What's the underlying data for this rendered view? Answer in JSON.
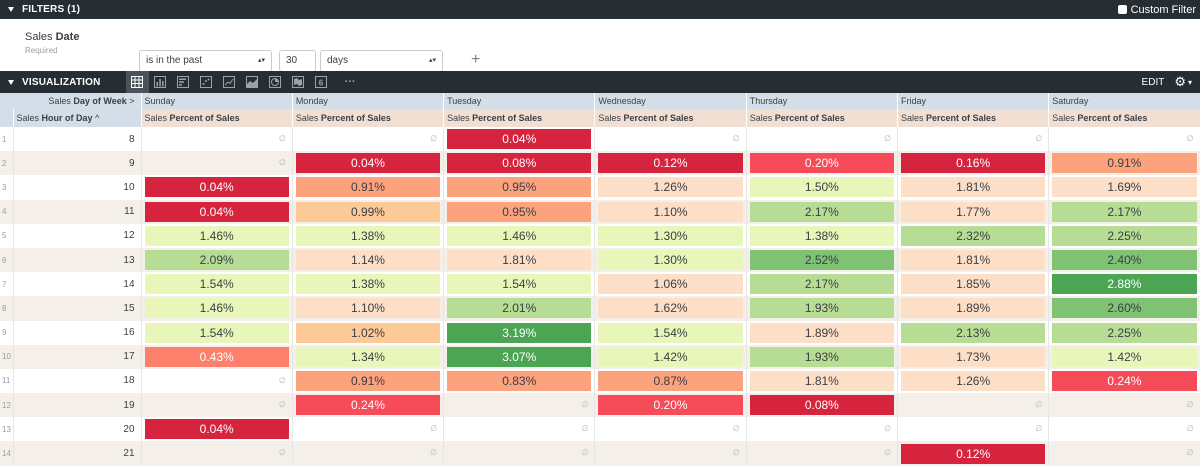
{
  "filters": {
    "title": "FILTERS (1)",
    "custom_filter_label": "Custom Filter",
    "field_view": "Sales",
    "field_name": "Date",
    "required_label": "Required",
    "operator": "is in the past",
    "amount": "30",
    "unit": "days",
    "add_symbol": "+"
  },
  "visualization": {
    "title": "VISUALIZATION",
    "edit_label": "EDIT",
    "more_label": "···",
    "icons": [
      "table-icon",
      "bar-chart-icon",
      "column-chart-icon",
      "scatter-icon",
      "line-chart-icon",
      "area-chart-icon",
      "pie-chart-icon",
      "map-icon",
      "single-value-icon"
    ],
    "single_value_glyph": "6"
  },
  "table": {
    "pivot_view": "Sales",
    "pivot_field": "Day of Week",
    "pivot_arrow": ">",
    "dim_view": "Sales",
    "dim_field": "Hour of Day",
    "dim_sort": "^",
    "measure_view": "Sales",
    "measure_field": "Percent of Sales",
    "null_symbol": "∅",
    "days": [
      "Sunday",
      "Monday",
      "Tuesday",
      "Wednesday",
      "Thursday",
      "Friday",
      "Saturday"
    ],
    "colors": {
      "deep_red": "#d6243f",
      "red": "#f64b58",
      "salmon": "#fc806b",
      "orange": "#fca27d",
      "peach": "#fdc996",
      "light_peach": "#fddfc8",
      "pale_yellow": "#e8f7b9",
      "light_green": "#b7dc94",
      "green": "#7fc274",
      "strong_green": "#4ba552",
      "text_dark": "#3a3f44",
      "text_light": "#ffffff"
    },
    "rows": [
      {
        "idx": "1",
        "hour": "8",
        "cells": [
          null,
          null,
          {
            "v": "0.04%",
            "c": "deep_red",
            "t": "light"
          },
          null,
          null,
          null,
          null
        ]
      },
      {
        "idx": "2",
        "hour": "9",
        "cells": [
          null,
          {
            "v": "0.04%",
            "c": "deep_red",
            "t": "light"
          },
          {
            "v": "0.08%",
            "c": "deep_red",
            "t": "light"
          },
          {
            "v": "0.12%",
            "c": "deep_red",
            "t": "light"
          },
          {
            "v": "0.20%",
            "c": "red",
            "t": "light"
          },
          {
            "v": "0.16%",
            "c": "deep_red",
            "t": "light"
          },
          {
            "v": "0.91%",
            "c": "orange",
            "t": "dark"
          }
        ]
      },
      {
        "idx": "3",
        "hour": "10",
        "cells": [
          {
            "v": "0.04%",
            "c": "deep_red",
            "t": "light"
          },
          {
            "v": "0.91%",
            "c": "orange",
            "t": "dark"
          },
          {
            "v": "0.95%",
            "c": "orange",
            "t": "dark"
          },
          {
            "v": "1.26%",
            "c": "light_peach",
            "t": "dark"
          },
          {
            "v": "1.50%",
            "c": "pale_yellow",
            "t": "dark"
          },
          {
            "v": "1.81%",
            "c": "light_peach",
            "t": "dark"
          },
          {
            "v": "1.69%",
            "c": "light_peach",
            "t": "dark"
          }
        ]
      },
      {
        "idx": "4",
        "hour": "11",
        "cells": [
          {
            "v": "0.04%",
            "c": "deep_red",
            "t": "light"
          },
          {
            "v": "0.99%",
            "c": "peach",
            "t": "dark"
          },
          {
            "v": "0.95%",
            "c": "orange",
            "t": "dark"
          },
          {
            "v": "1.10%",
            "c": "light_peach",
            "t": "dark"
          },
          {
            "v": "2.17%",
            "c": "light_green",
            "t": "dark"
          },
          {
            "v": "1.77%",
            "c": "light_peach",
            "t": "dark"
          },
          {
            "v": "2.17%",
            "c": "light_green",
            "t": "dark"
          }
        ]
      },
      {
        "idx": "5",
        "hour": "12",
        "cells": [
          {
            "v": "1.46%",
            "c": "pale_yellow",
            "t": "dark"
          },
          {
            "v": "1.38%",
            "c": "pale_yellow",
            "t": "dark"
          },
          {
            "v": "1.46%",
            "c": "pale_yellow",
            "t": "dark"
          },
          {
            "v": "1.30%",
            "c": "pale_yellow",
            "t": "dark"
          },
          {
            "v": "1.38%",
            "c": "pale_yellow",
            "t": "dark"
          },
          {
            "v": "2.32%",
            "c": "light_green",
            "t": "dark"
          },
          {
            "v": "2.25%",
            "c": "light_green",
            "t": "dark"
          }
        ]
      },
      {
        "idx": "6",
        "hour": "13",
        "cells": [
          {
            "v": "2.09%",
            "c": "light_green",
            "t": "dark"
          },
          {
            "v": "1.14%",
            "c": "light_peach",
            "t": "dark"
          },
          {
            "v": "1.81%",
            "c": "light_peach",
            "t": "dark"
          },
          {
            "v": "1.30%",
            "c": "pale_yellow",
            "t": "dark"
          },
          {
            "v": "2.52%",
            "c": "green",
            "t": "dark"
          },
          {
            "v": "1.81%",
            "c": "light_peach",
            "t": "dark"
          },
          {
            "v": "2.40%",
            "c": "green",
            "t": "dark"
          }
        ]
      },
      {
        "idx": "7",
        "hour": "14",
        "cells": [
          {
            "v": "1.54%",
            "c": "pale_yellow",
            "t": "dark"
          },
          {
            "v": "1.38%",
            "c": "pale_yellow",
            "t": "dark"
          },
          {
            "v": "1.54%",
            "c": "pale_yellow",
            "t": "dark"
          },
          {
            "v": "1.06%",
            "c": "light_peach",
            "t": "dark"
          },
          {
            "v": "2.17%",
            "c": "light_green",
            "t": "dark"
          },
          {
            "v": "1.85%",
            "c": "light_peach",
            "t": "dark"
          },
          {
            "v": "2.88%",
            "c": "strong_green",
            "t": "light"
          }
        ]
      },
      {
        "idx": "8",
        "hour": "15",
        "cells": [
          {
            "v": "1.46%",
            "c": "pale_yellow",
            "t": "dark"
          },
          {
            "v": "1.10%",
            "c": "light_peach",
            "t": "dark"
          },
          {
            "v": "2.01%",
            "c": "light_green",
            "t": "dark"
          },
          {
            "v": "1.62%",
            "c": "light_peach",
            "t": "dark"
          },
          {
            "v": "1.93%",
            "c": "light_green",
            "t": "dark"
          },
          {
            "v": "1.89%",
            "c": "light_peach",
            "t": "dark"
          },
          {
            "v": "2.60%",
            "c": "green",
            "t": "dark"
          }
        ]
      },
      {
        "idx": "9",
        "hour": "16",
        "cells": [
          {
            "v": "1.54%",
            "c": "pale_yellow",
            "t": "dark"
          },
          {
            "v": "1.02%",
            "c": "peach",
            "t": "dark"
          },
          {
            "v": "3.19%",
            "c": "strong_green",
            "t": "light"
          },
          {
            "v": "1.54%",
            "c": "pale_yellow",
            "t": "dark"
          },
          {
            "v": "1.89%",
            "c": "light_peach",
            "t": "dark"
          },
          {
            "v": "2.13%",
            "c": "light_green",
            "t": "dark"
          },
          {
            "v": "2.25%",
            "c": "light_green",
            "t": "dark"
          }
        ]
      },
      {
        "idx": "10",
        "hour": "17",
        "cells": [
          {
            "v": "0.43%",
            "c": "salmon",
            "t": "light"
          },
          {
            "v": "1.34%",
            "c": "pale_yellow",
            "t": "dark"
          },
          {
            "v": "3.07%",
            "c": "strong_green",
            "t": "light"
          },
          {
            "v": "1.42%",
            "c": "pale_yellow",
            "t": "dark"
          },
          {
            "v": "1.93%",
            "c": "light_green",
            "t": "dark"
          },
          {
            "v": "1.73%",
            "c": "light_peach",
            "t": "dark"
          },
          {
            "v": "1.42%",
            "c": "pale_yellow",
            "t": "dark"
          }
        ]
      },
      {
        "idx": "11",
        "hour": "18",
        "cells": [
          null,
          {
            "v": "0.91%",
            "c": "orange",
            "t": "dark"
          },
          {
            "v": "0.83%",
            "c": "orange",
            "t": "dark"
          },
          {
            "v": "0.87%",
            "c": "orange",
            "t": "dark"
          },
          {
            "v": "1.81%",
            "c": "light_peach",
            "t": "dark"
          },
          {
            "v": "1.26%",
            "c": "light_peach",
            "t": "dark"
          },
          {
            "v": "0.24%",
            "c": "red",
            "t": "light"
          }
        ]
      },
      {
        "idx": "12",
        "hour": "19",
        "cells": [
          null,
          {
            "v": "0.24%",
            "c": "red",
            "t": "light"
          },
          null,
          {
            "v": "0.20%",
            "c": "red",
            "t": "light"
          },
          {
            "v": "0.08%",
            "c": "deep_red",
            "t": "light"
          },
          null,
          null
        ]
      },
      {
        "idx": "13",
        "hour": "20",
        "cells": [
          {
            "v": "0.04%",
            "c": "deep_red",
            "t": "light"
          },
          null,
          null,
          null,
          null,
          null,
          null
        ]
      },
      {
        "idx": "14",
        "hour": "21",
        "cells": [
          null,
          null,
          null,
          null,
          null,
          {
            "v": "0.12%",
            "c": "deep_red",
            "t": "light"
          },
          null
        ]
      }
    ]
  }
}
